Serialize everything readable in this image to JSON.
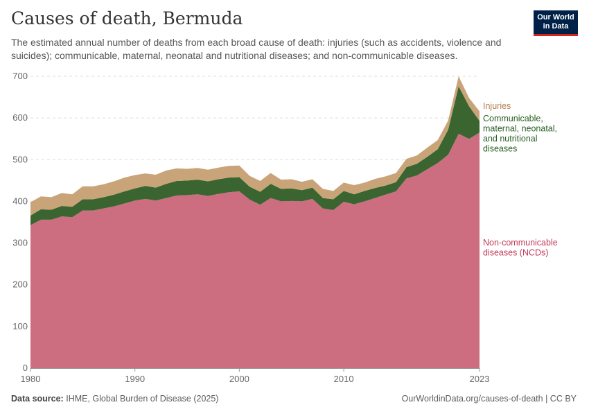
{
  "header": {
    "title": "Causes of death, Bermuda",
    "subtitle": "The estimated annual number of deaths from each broad cause of death: injuries (such as accidents, violence and suicides); communicable, maternal, neonatal and nutritional diseases; and non-communicable diseases.",
    "logo_line1": "Our World",
    "logo_line2": "in Data"
  },
  "footer": {
    "source_label": "Data source:",
    "source_text": "IHME, Global Burden of Disease (2025)",
    "url": "OurWorldinData.org/causes-of-death | CC BY"
  },
  "colors": {
    "ncd": "#cd6d80",
    "communicable": "#3b6530",
    "injuries": "#c9a479",
    "ncd_label": "#c1395a",
    "communicable_label": "#265f20",
    "injuries_label": "#b37e4f"
  },
  "chart_data": {
    "type": "area",
    "stacked": true,
    "title": "Causes of death, Bermuda",
    "xlabel": "",
    "ylabel": "",
    "ylim": [
      0,
      700
    ],
    "xlim": [
      1980,
      2023
    ],
    "y_ticks": [
      0,
      100,
      200,
      300,
      400,
      500,
      600,
      700
    ],
    "x_ticks": [
      1980,
      1990,
      2000,
      2010,
      2023
    ],
    "grid": true,
    "x": [
      1980,
      1981,
      1982,
      1983,
      1984,
      1985,
      1986,
      1987,
      1988,
      1989,
      1990,
      1991,
      1992,
      1993,
      1994,
      1995,
      1996,
      1997,
      1998,
      1999,
      2000,
      2001,
      2002,
      2003,
      2004,
      2005,
      2006,
      2007,
      2008,
      2009,
      2010,
      2011,
      2012,
      2013,
      2014,
      2015,
      2016,
      2017,
      2018,
      2019,
      2020,
      2021,
      2022,
      2023
    ],
    "series": [
      {
        "name": "Non-communicable diseases (NCDs)",
        "label_lines": [
          "Non-communicable",
          "diseases (NCDs)"
        ],
        "values": [
          343,
          356,
          356,
          364,
          362,
          378,
          378,
          383,
          388,
          395,
          402,
          406,
          402,
          408,
          414,
          415,
          417,
          413,
          418,
          422,
          424,
          404,
          392,
          408,
          400,
          401,
          400,
          406,
          383,
          379,
          399,
          393,
          400,
          408,
          416,
          424,
          455,
          462,
          477,
          492,
          512,
          562,
          550,
          565
        ]
      },
      {
        "name": "Communicable, maternal, neonatal, and nutritional diseases",
        "label_lines": [
          "Communicable,",
          "maternal, neonatal,",
          "and nutritional",
          "diseases"
        ],
        "values": [
          23,
          25,
          24,
          25,
          25,
          27,
          27,
          27,
          28,
          29,
          29,
          31,
          31,
          34,
          35,
          35,
          35,
          35,
          35,
          35,
          34,
          31,
          31,
          34,
          30,
          30,
          27,
          27,
          25,
          26,
          26,
          24,
          25,
          24,
          22,
          22,
          27,
          28,
          30,
          33,
          60,
          114,
          78,
          28
        ]
      },
      {
        "name": "Injuries",
        "label_lines": [
          "Injuries"
        ],
        "values": [
          32,
          31,
          30,
          31,
          30,
          31,
          31,
          31,
          32,
          33,
          32,
          30,
          31,
          32,
          30,
          28,
          28,
          28,
          28,
          28,
          28,
          26,
          26,
          26,
          22,
          22,
          20,
          20,
          22,
          20,
          20,
          22,
          20,
          22,
          22,
          22,
          20,
          20,
          22,
          22,
          22,
          24,
          20,
          23
        ]
      }
    ]
  }
}
